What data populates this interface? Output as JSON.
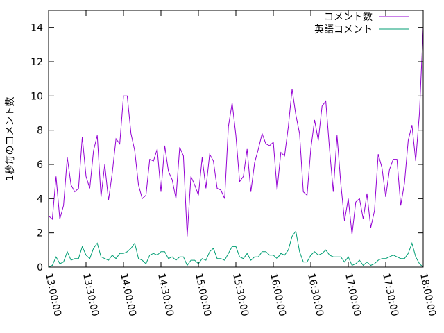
{
  "chart_data": {
    "type": "line",
    "title": "",
    "xlabel": "",
    "ylabel": "1秒毎のコメント数",
    "ylim": [
      0,
      15
    ],
    "yticks": [
      0,
      2,
      4,
      6,
      8,
      10,
      12,
      14
    ],
    "xlim_seconds": [
      46800,
      64800
    ],
    "xticks": [
      {
        "t": 46800,
        "label": "13:00:00"
      },
      {
        "t": 48600,
        "label": "13:30:00"
      },
      {
        "t": 50400,
        "label": "14:00:00"
      },
      {
        "t": 52200,
        "label": "14:30:00"
      },
      {
        "t": 54000,
        "label": "15:00:00"
      },
      {
        "t": 55800,
        "label": "15:30:00"
      },
      {
        "t": 57600,
        "label": "16:00:00"
      },
      {
        "t": 59400,
        "label": "16:30:00"
      },
      {
        "t": 61200,
        "label": "17:00:00"
      },
      {
        "t": 63000,
        "label": "17:30:00"
      },
      {
        "t": 64800,
        "label": "18:00:00"
      }
    ],
    "grid": false,
    "legend_position": "top-right",
    "series": [
      {
        "name": "コメント数",
        "color": "#9400d3",
        "points": [
          [
            46800,
            3.0
          ],
          [
            46980,
            2.8
          ],
          [
            47160,
            5.3
          ],
          [
            47340,
            2.8
          ],
          [
            47520,
            3.6
          ],
          [
            47700,
            6.4
          ],
          [
            47880,
            4.8
          ],
          [
            48060,
            4.4
          ],
          [
            48240,
            4.6
          ],
          [
            48420,
            7.6
          ],
          [
            48600,
            5.3
          ],
          [
            48780,
            4.6
          ],
          [
            48960,
            6.8
          ],
          [
            49140,
            7.7
          ],
          [
            49320,
            4.1
          ],
          [
            49500,
            6.0
          ],
          [
            49680,
            3.9
          ],
          [
            49860,
            5.5
          ],
          [
            50040,
            7.5
          ],
          [
            50220,
            7.2
          ],
          [
            50400,
            10.0
          ],
          [
            50580,
            10.0
          ],
          [
            50760,
            7.8
          ],
          [
            50940,
            6.8
          ],
          [
            51120,
            4.8
          ],
          [
            51300,
            4.0
          ],
          [
            51480,
            4.2
          ],
          [
            51660,
            6.3
          ],
          [
            51840,
            6.2
          ],
          [
            52020,
            6.9
          ],
          [
            52200,
            4.4
          ],
          [
            52380,
            7.1
          ],
          [
            52560,
            5.6
          ],
          [
            52740,
            5.1
          ],
          [
            52920,
            4.0
          ],
          [
            53100,
            7.0
          ],
          [
            53280,
            6.5
          ],
          [
            53460,
            1.8
          ],
          [
            53640,
            5.3
          ],
          [
            53820,
            4.8
          ],
          [
            54000,
            4.2
          ],
          [
            54180,
            6.4
          ],
          [
            54360,
            4.6
          ],
          [
            54540,
            6.6
          ],
          [
            54720,
            6.2
          ],
          [
            54900,
            4.6
          ],
          [
            55080,
            4.5
          ],
          [
            55260,
            4.0
          ],
          [
            55440,
            8.2
          ],
          [
            55620,
            9.6
          ],
          [
            55800,
            7.7
          ],
          [
            55980,
            5.0
          ],
          [
            56160,
            5.3
          ],
          [
            56340,
            6.9
          ],
          [
            56520,
            4.4
          ],
          [
            56700,
            6.1
          ],
          [
            56880,
            6.9
          ],
          [
            57060,
            7.8
          ],
          [
            57240,
            7.2
          ],
          [
            57420,
            7.1
          ],
          [
            57600,
            7.3
          ],
          [
            57780,
            4.5
          ],
          [
            57960,
            6.7
          ],
          [
            58140,
            6.5
          ],
          [
            58320,
            8.2
          ],
          [
            58500,
            10.4
          ],
          [
            58680,
            8.9
          ],
          [
            58860,
            7.8
          ],
          [
            59040,
            4.4
          ],
          [
            59220,
            4.2
          ],
          [
            59400,
            6.9
          ],
          [
            59580,
            8.6
          ],
          [
            59760,
            7.4
          ],
          [
            59940,
            9.4
          ],
          [
            60120,
            9.7
          ],
          [
            60300,
            6.9
          ],
          [
            60480,
            4.4
          ],
          [
            60660,
            7.7
          ],
          [
            60840,
            4.9
          ],
          [
            61020,
            2.7
          ],
          [
            61200,
            4.0
          ],
          [
            61380,
            1.9
          ],
          [
            61560,
            3.8
          ],
          [
            61740,
            4.0
          ],
          [
            61920,
            2.8
          ],
          [
            62100,
            4.3
          ],
          [
            62280,
            2.3
          ],
          [
            62460,
            3.3
          ],
          [
            62640,
            6.6
          ],
          [
            62820,
            5.8
          ],
          [
            63000,
            4.1
          ],
          [
            63180,
            5.7
          ],
          [
            63360,
            6.3
          ],
          [
            63540,
            6.3
          ],
          [
            63720,
            3.6
          ],
          [
            63900,
            4.9
          ],
          [
            64080,
            7.4
          ],
          [
            64260,
            8.3
          ],
          [
            64440,
            6.2
          ],
          [
            64620,
            9.0
          ],
          [
            64800,
            14.0
          ]
        ]
      },
      {
        "name": "英語コメント",
        "color": "#009e73",
        "points": [
          [
            46800,
            0.0
          ],
          [
            46980,
            0.1
          ],
          [
            47160,
            0.6
          ],
          [
            47340,
            0.2
          ],
          [
            47520,
            0.3
          ],
          [
            47700,
            0.9
          ],
          [
            47880,
            0.4
          ],
          [
            48060,
            0.5
          ],
          [
            48240,
            0.5
          ],
          [
            48420,
            1.2
          ],
          [
            48600,
            0.7
          ],
          [
            48780,
            0.5
          ],
          [
            48960,
            1.1
          ],
          [
            49140,
            1.4
          ],
          [
            49320,
            0.6
          ],
          [
            49500,
            0.5
          ],
          [
            49680,
            0.4
          ],
          [
            49860,
            0.7
          ],
          [
            50040,
            0.5
          ],
          [
            50220,
            0.8
          ],
          [
            50400,
            0.8
          ],
          [
            50580,
            0.9
          ],
          [
            50760,
            1.1
          ],
          [
            50940,
            1.4
          ],
          [
            51120,
            0.5
          ],
          [
            51300,
            0.4
          ],
          [
            51480,
            0.2
          ],
          [
            51660,
            0.7
          ],
          [
            51840,
            0.8
          ],
          [
            52020,
            0.7
          ],
          [
            52200,
            0.9
          ],
          [
            52380,
            0.9
          ],
          [
            52560,
            0.5
          ],
          [
            52740,
            0.6
          ],
          [
            52920,
            0.4
          ],
          [
            53100,
            0.6
          ],
          [
            53280,
            0.6
          ],
          [
            53460,
            0.1
          ],
          [
            53640,
            0.4
          ],
          [
            53820,
            0.4
          ],
          [
            54000,
            0.2
          ],
          [
            54180,
            0.5
          ],
          [
            54360,
            0.4
          ],
          [
            54540,
            0.9
          ],
          [
            54720,
            1.1
          ],
          [
            54900,
            0.5
          ],
          [
            55080,
            0.5
          ],
          [
            55260,
            0.4
          ],
          [
            55440,
            0.8
          ],
          [
            55620,
            1.2
          ],
          [
            55800,
            1.2
          ],
          [
            55980,
            0.6
          ],
          [
            56160,
            0.5
          ],
          [
            56340,
            0.8
          ],
          [
            56520,
            0.4
          ],
          [
            56700,
            0.6
          ],
          [
            56880,
            0.6
          ],
          [
            57060,
            0.9
          ],
          [
            57240,
            0.9
          ],
          [
            57420,
            0.7
          ],
          [
            57600,
            0.7
          ],
          [
            57780,
            0.5
          ],
          [
            57960,
            0.8
          ],
          [
            58140,
            0.7
          ],
          [
            58320,
            1.0
          ],
          [
            58500,
            1.8
          ],
          [
            58680,
            2.1
          ],
          [
            58860,
            0.9
          ],
          [
            59040,
            0.3
          ],
          [
            59220,
            0.3
          ],
          [
            59400,
            0.7
          ],
          [
            59580,
            0.9
          ],
          [
            59760,
            0.7
          ],
          [
            59940,
            0.8
          ],
          [
            60120,
            1.0
          ],
          [
            60300,
            0.7
          ],
          [
            60480,
            0.6
          ],
          [
            60660,
            0.6
          ],
          [
            60840,
            0.6
          ],
          [
            61020,
            0.3
          ],
          [
            61200,
            0.6
          ],
          [
            61380,
            0.1
          ],
          [
            61560,
            0.2
          ],
          [
            61740,
            0.4
          ],
          [
            61920,
            0.1
          ],
          [
            62100,
            0.3
          ],
          [
            62280,
            0.1
          ],
          [
            62460,
            0.2
          ],
          [
            62640,
            0.4
          ],
          [
            62820,
            0.5
          ],
          [
            63000,
            0.5
          ],
          [
            63180,
            0.6
          ],
          [
            63360,
            0.7
          ],
          [
            63540,
            0.6
          ],
          [
            63720,
            0.5
          ],
          [
            63900,
            0.5
          ],
          [
            64080,
            0.8
          ],
          [
            64260,
            1.4
          ],
          [
            64440,
            0.6
          ],
          [
            64620,
            0.2
          ],
          [
            64800,
            0.0
          ]
        ]
      }
    ]
  }
}
